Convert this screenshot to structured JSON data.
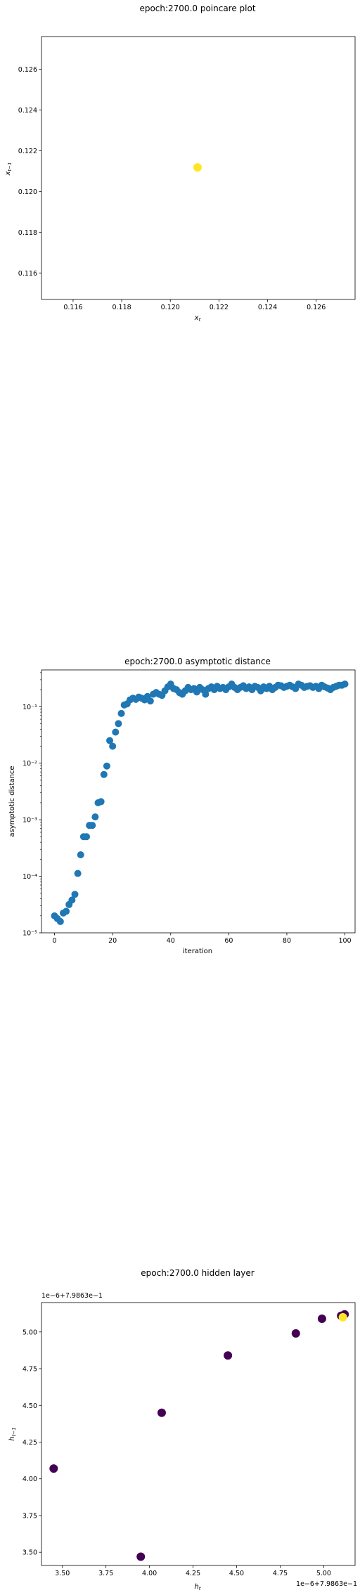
{
  "chart_data": [
    {
      "type": "scatter",
      "title": "epoch:2700.0 poincare plot",
      "xlabel": "x_t",
      "ylabel": "x_{t-1}",
      "xlim": [
        0.1147,
        0.1276
      ],
      "ylim": [
        0.1147,
        0.1276
      ],
      "xticks": [
        "0.116",
        "0.118",
        "0.120",
        "0.122",
        "0.124",
        "0.126"
      ],
      "yticks": [
        "0.116",
        "0.118",
        "0.120",
        "0.122",
        "0.124",
        "0.126"
      ],
      "point_color": "#fde725",
      "points": [
        {
          "x": 0.12112,
          "y": 0.12118
        }
      ]
    },
    {
      "type": "scatter",
      "title": "epoch:2700.0 asymptotic distance",
      "xlabel": "iteration",
      "ylabel": "asymptotic distance",
      "yscale": "log",
      "xlim": [
        -4.5,
        103.5
      ],
      "ylim_exp": [
        -5,
        -0.35
      ],
      "xticks": [
        "0",
        "20",
        "40",
        "60",
        "80",
        "100"
      ],
      "yticks": [
        "10⁻⁵",
        "10⁻⁴",
        "10⁻³",
        "10⁻²",
        "10⁻¹"
      ],
      "point_color": "#1f77b4",
      "log10_values": [
        -4.7,
        -4.75,
        -4.8,
        -4.65,
        -4.62,
        -4.5,
        -4.42,
        -4.32,
        -3.95,
        -3.62,
        -3.3,
        -3.3,
        -3.1,
        -3.1,
        -2.95,
        -2.7,
        -2.68,
        -2.2,
        -2.05,
        -1.6,
        -1.7,
        -1.45,
        -1.3,
        -1.12,
        -0.97,
        -0.95,
        -0.88,
        -0.85,
        -0.87,
        -0.83,
        -0.85,
        -0.88,
        -0.82,
        -0.9,
        -0.78,
        -0.75,
        -0.78,
        -0.8,
        -0.72,
        -0.65,
        -0.6,
        -0.68,
        -0.7,
        -0.75,
        -0.78,
        -0.72,
        -0.66,
        -0.7,
        -0.68,
        -0.74,
        -0.66,
        -0.7,
        -0.78,
        -0.68,
        -0.65,
        -0.7,
        -0.64,
        -0.68,
        -0.66,
        -0.7,
        -0.65,
        -0.6,
        -0.66,
        -0.7,
        -0.66,
        -0.63,
        -0.68,
        -0.65,
        -0.7,
        -0.64,
        -0.66,
        -0.72,
        -0.65,
        -0.68,
        -0.64,
        -0.7,
        -0.66,
        -0.62,
        -0.63,
        -0.66,
        -0.64,
        -0.62,
        -0.65,
        -0.68,
        -0.6,
        -0.62,
        -0.66,
        -0.64,
        -0.63,
        -0.66,
        -0.64,
        -0.68,
        -0.62,
        -0.65,
        -0.67,
        -0.7,
        -0.66,
        -0.64,
        -0.62,
        -0.62,
        -0.6
      ]
    },
    {
      "type": "scatter",
      "title": "epoch:2700.0 hidden layer",
      "xlabel": "h_t",
      "ylabel": "h_{t-1}",
      "x_offset_label": "1e−6+7.9863e−1",
      "y_offset_label": "1e−6+7.9863e−1",
      "xlim": [
        3.38,
        5.18
      ],
      "ylim": [
        3.41,
        5.2
      ],
      "xticks": [
        "3.50",
        "3.75",
        "4.00",
        "4.25",
        "4.50",
        "4.75",
        "5.00"
      ],
      "yticks": [
        "3.50",
        "3.75",
        "4.00",
        "4.25",
        "4.50",
        "4.75",
        "5.00"
      ],
      "colors": {
        "early": "#440154",
        "late": "#fde725"
      },
      "points": [
        {
          "x": 3.45,
          "y": 4.07,
          "c": "early"
        },
        {
          "x": 3.95,
          "y": 3.47,
          "c": "early"
        },
        {
          "x": 4.07,
          "y": 4.45,
          "c": "early"
        },
        {
          "x": 4.45,
          "y": 4.84,
          "c": "early"
        },
        {
          "x": 4.84,
          "y": 4.99,
          "c": "early"
        },
        {
          "x": 4.99,
          "y": 5.09,
          "c": "early"
        },
        {
          "x": 5.1,
          "y": 5.11,
          "c": "early"
        },
        {
          "x": 5.12,
          "y": 5.12,
          "c": "early"
        },
        {
          "x": 5.11,
          "y": 5.1,
          "c": "late"
        }
      ]
    }
  ]
}
